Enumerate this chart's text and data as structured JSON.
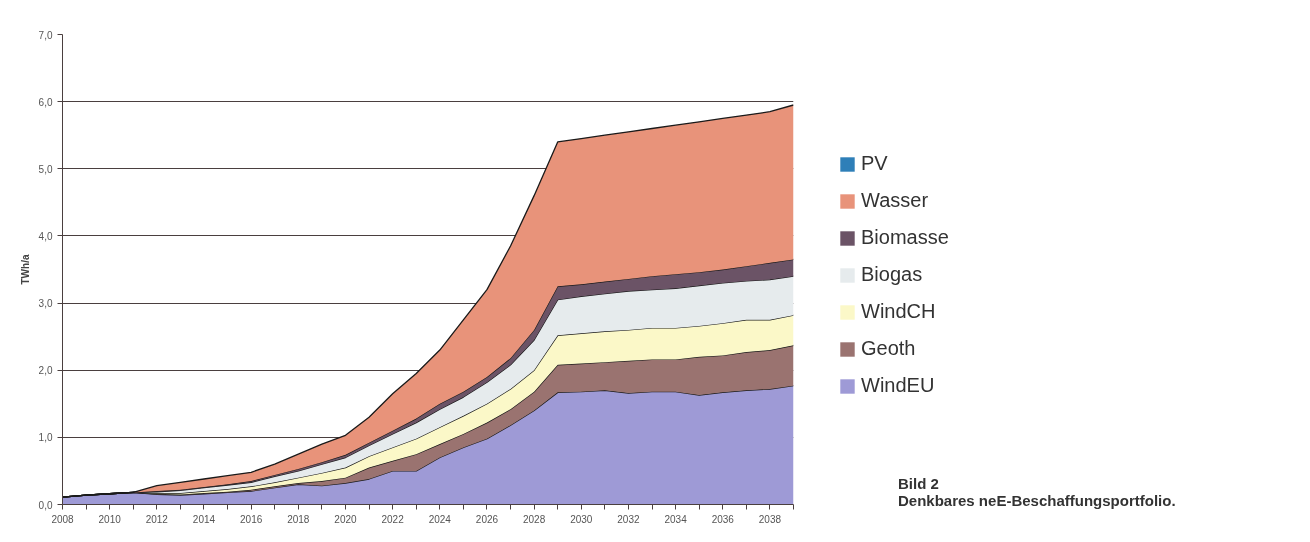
{
  "chart_data": {
    "type": "area",
    "stacked": true,
    "ylabel": "TWh/a",
    "x": [
      2008,
      2009,
      2010,
      2011,
      2012,
      2013,
      2014,
      2015,
      2016,
      2017,
      2018,
      2019,
      2020,
      2021,
      2022,
      2023,
      2024,
      2025,
      2026,
      2027,
      2028,
      2029,
      2030,
      2031,
      2032,
      2033,
      2034,
      2035,
      2036,
      2037,
      2038,
      2039
    ],
    "series": [
      {
        "name": "WindEU",
        "color": "#9e9ad6",
        "values": [
          0.11,
          0.14,
          0.16,
          0.18,
          0.15,
          0.14,
          0.16,
          0.18,
          0.2,
          0.25,
          0.3,
          0.28,
          0.32,
          0.38,
          0.5,
          0.5,
          0.7,
          0.85,
          0.98,
          1.18,
          1.4,
          1.67,
          1.68,
          1.7,
          1.66,
          1.68,
          1.68,
          1.63,
          1.67,
          1.7,
          1.72,
          1.77
        ]
      },
      {
        "name": "Geoth",
        "color": "#9a7370",
        "values": [
          0,
          0,
          0,
          0,
          0.01,
          0.01,
          0.01,
          0.01,
          0.02,
          0.02,
          0.02,
          0.07,
          0.08,
          0.17,
          0.15,
          0.25,
          0.2,
          0.2,
          0.24,
          0.24,
          0.28,
          0.41,
          0.42,
          0.42,
          0.48,
          0.48,
          0.48,
          0.57,
          0.55,
          0.57,
          0.58,
          0.6
        ]
      },
      {
        "name": "WindCH",
        "color": "#fbf8c8",
        "values": [
          0,
          0,
          0,
          0,
          0.01,
          0.02,
          0.03,
          0.04,
          0.05,
          0.06,
          0.08,
          0.12,
          0.15,
          0.17,
          0.2,
          0.23,
          0.25,
          0.27,
          0.28,
          0.3,
          0.32,
          0.44,
          0.45,
          0.46,
          0.46,
          0.47,
          0.47,
          0.46,
          0.48,
          0.48,
          0.45,
          0.45
        ]
      },
      {
        "name": "Biogas",
        "color": "#e6ebed",
        "values": [
          0,
          0,
          0,
          0,
          0.02,
          0.04,
          0.05,
          0.06,
          0.06,
          0.09,
          0.1,
          0.13,
          0.15,
          0.16,
          0.2,
          0.24,
          0.27,
          0.28,
          0.32,
          0.36,
          0.45,
          0.53,
          0.55,
          0.56,
          0.58,
          0.57,
          0.59,
          0.6,
          0.6,
          0.58,
          0.6,
          0.58
        ]
      },
      {
        "name": "Biomasse",
        "color": "#6b5366",
        "values": [
          0,
          0,
          0,
          0,
          0.01,
          0.01,
          0.01,
          0.01,
          0.02,
          0.02,
          0.03,
          0.03,
          0.04,
          0.04,
          0.05,
          0.06,
          0.08,
          0.08,
          0.08,
          0.1,
          0.15,
          0.2,
          0.18,
          0.18,
          0.18,
          0.2,
          0.21,
          0.2,
          0.2,
          0.22,
          0.25,
          0.25
        ]
      },
      {
        "name": "Wasser",
        "color": "#e8937a",
        "values": [
          0,
          0,
          0,
          0,
          0.08,
          0.11,
          0.12,
          0.13,
          0.13,
          0.16,
          0.22,
          0.27,
          0.29,
          0.38,
          0.55,
          0.67,
          0.8,
          1.07,
          1.3,
          1.67,
          2.0,
          2.15,
          2.17,
          2.18,
          2.19,
          2.2,
          2.22,
          2.24,
          2.25,
          2.25,
          2.25,
          2.3
        ]
      },
      {
        "name": "PV",
        "color": "#2e7fb8",
        "values": [
          null,
          null,
          null,
          null,
          null,
          null,
          null,
          null,
          null,
          null,
          null,
          null,
          null,
          null,
          null,
          null,
          null,
          null,
          null,
          null,
          null,
          null,
          null,
          null,
          null,
          null,
          null,
          null,
          null,
          null,
          null,
          null
        ]
      }
    ],
    "xlim": [
      2008,
      2039
    ],
    "xticks": [
      2008,
      {
        "value": 2009,
        "label": null
      },
      2010,
      {
        "value": 2011,
        "label": null
      },
      2012,
      {
        "value": 2013,
        "label": null
      },
      2014,
      {
        "value": 2015,
        "label": null
      },
      2016,
      {
        "value": 2017,
        "label": null
      },
      2018,
      {
        "value": 2019,
        "label": null
      },
      2020,
      {
        "value": 2021,
        "label": null
      },
      2022,
      {
        "value": 2023,
        "label": null
      },
      2024,
      {
        "value": 2025,
        "label": null
      },
      2026,
      {
        "value": 2027,
        "label": null
      },
      2028,
      {
        "value": 2029,
        "label": null
      },
      2030,
      {
        "value": 2031,
        "label": null
      },
      2032,
      {
        "value": 2033,
        "label": null
      },
      2034,
      {
        "value": 2035,
        "label": null
      },
      2036,
      {
        "value": 2037,
        "label": null
      },
      2038,
      {
        "value": 2039,
        "label": null
      }
    ],
    "ylim": [
      0,
      7
    ],
    "yticks": [
      {
        "value": 0,
        "label": "0,0"
      },
      {
        "value": 1,
        "label": "1,0"
      },
      {
        "value": 2,
        "label": "2,0"
      },
      {
        "value": 3,
        "label": "3,0"
      },
      {
        "value": 4,
        "label": "4,0"
      },
      {
        "value": 5,
        "label": "5,0"
      },
      {
        "value": 6,
        "label": "6,0"
      },
      {
        "value": 7,
        "label": "7,0"
      }
    ],
    "grid": "y",
    "legend": "right",
    "line_style": "solid",
    "annotations": [
      "Bild 2\nDenkbares neE-Beschaffungsportfolio."
    ]
  }
}
